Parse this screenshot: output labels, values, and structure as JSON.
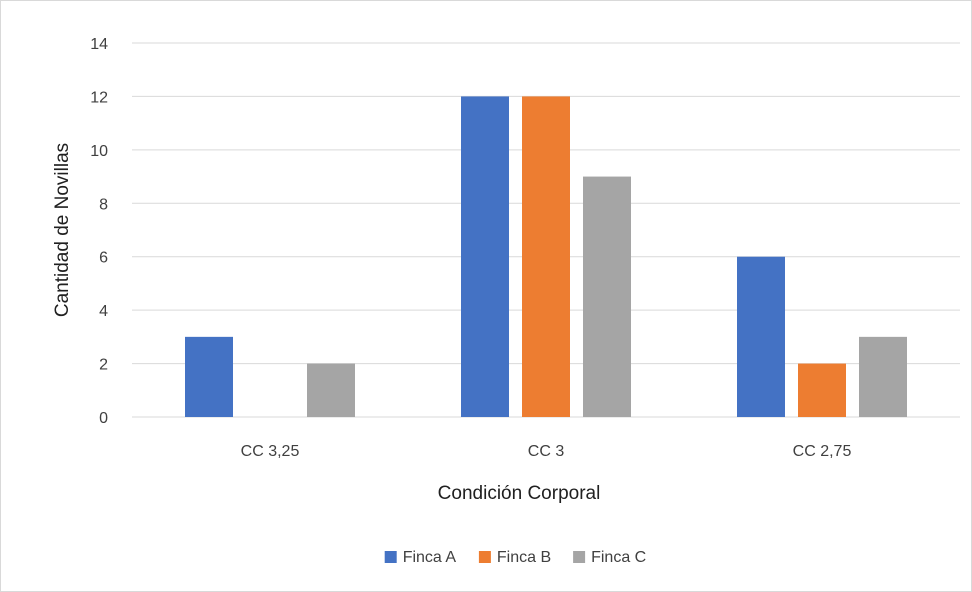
{
  "chart_data": {
    "type": "bar",
    "title": "",
    "categories": [
      "CC 3,25",
      "CC 3",
      "CC 2,75"
    ],
    "series": [
      {
        "name": "Finca A",
        "values": [
          3,
          12,
          6
        ],
        "color": "#4472C4"
      },
      {
        "name": "Finca B",
        "values": [
          0,
          12,
          2
        ],
        "color": "#ED7D31"
      },
      {
        "name": "Finca C",
        "values": [
          2,
          9,
          3
        ],
        "color": "#A5A5A5"
      }
    ],
    "xlabel": "Condición Corporal",
    "ylabel": "Cantidad de Novillas",
    "ylim": [
      0,
      14
    ],
    "yticks": [
      0,
      2,
      4,
      6,
      8,
      10,
      12,
      14
    ],
    "grid": true,
    "legend_position": "bottom",
    "colors": {
      "gridline": "#d9d9d9",
      "border": "#d9d9d9"
    }
  }
}
